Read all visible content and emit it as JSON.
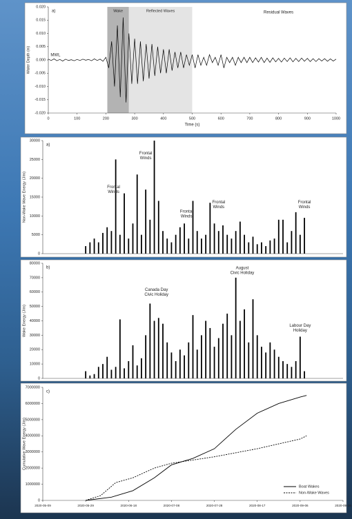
{
  "chart_data": [
    {
      "type": "line",
      "panel_label": "a)",
      "xlabel": "Time (s)",
      "ylabel": "Water Depth (m)",
      "xlim": [
        0,
        1000
      ],
      "xticks": [
        0,
        100,
        200,
        300,
        400,
        500,
        600,
        700,
        800,
        900,
        1000
      ],
      "ylim": [
        -0.02,
        0.02
      ],
      "yticks": [
        {
          "value": 0.02,
          "label": "0.020"
        },
        0.015,
        {
          "value": 0.01,
          "label": "0.010"
        },
        0.005,
        {
          "value": 0,
          "label": "0.000"
        },
        -0.005,
        {
          "value": -0.01,
          "label": "-0.010"
        },
        -0.015,
        {
          "value": -0.02,
          "label": "-0.020"
        }
      ],
      "regions": [
        {
          "label": "Wake",
          "start": 205,
          "end": 280,
          "color": "#b3b3b3"
        },
        {
          "label": "Reflected Waves",
          "start": 280,
          "end": 500,
          "color": "#e4e4e4"
        }
      ],
      "annotations": [
        {
          "lines": [
            "Residual Waves"
          ],
          "x": 800,
          "y": 0.018
        },
        {
          "lines": [
            "MWL"
          ],
          "x": 25,
          "y": 0.0018
        }
      ],
      "series": [
        {
          "color": "#000000",
          "line_style": "solid",
          "x": [
            0,
            10,
            20,
            30,
            40,
            50,
            60,
            70,
            80,
            90,
            100,
            110,
            120,
            130,
            140,
            150,
            160,
            170,
            180,
            190,
            200,
            210,
            220,
            230,
            240,
            250,
            260,
            270,
            280,
            290,
            300,
            310,
            320,
            330,
            340,
            350,
            360,
            370,
            380,
            390,
            400,
            410,
            420,
            430,
            440,
            450,
            460,
            470,
            480,
            490,
            500,
            510,
            520,
            530,
            540,
            550,
            560,
            570,
            580,
            590,
            600,
            610,
            620,
            630,
            640,
            650,
            660,
            670,
            680,
            690,
            700,
            710,
            720,
            730,
            740,
            750,
            760,
            770,
            780,
            790,
            800,
            810,
            820,
            830,
            840,
            850,
            860,
            870,
            880,
            890,
            900,
            910,
            920,
            930,
            940,
            950,
            960,
            970,
            980,
            990,
            1000
          ],
          "values": [
            0.0003,
            -0.0002,
            0.0004,
            -0.0003,
            0.0002,
            -0.0004,
            0.0003,
            -0.0002,
            0.0001,
            -0.0003,
            0.0002,
            -0.0002,
            0.0003,
            -0.0001,
            0.0002,
            -0.0003,
            0.0004,
            -0.0002,
            0.0003,
            -0.0005,
            0.001,
            -0.003,
            0.007,
            -0.01,
            0.013,
            -0.014,
            0.016,
            -0.016,
            0.01,
            -0.009,
            0.008,
            -0.009,
            0.007,
            -0.008,
            0.006,
            -0.007,
            0.006,
            -0.006,
            0.005,
            -0.005,
            0.004,
            -0.005,
            0.004,
            -0.004,
            0.003,
            -0.003,
            0.003,
            -0.003,
            0.002,
            -0.002,
            0.002,
            -0.003,
            0.002,
            -0.002,
            0.001,
            -0.002,
            0.002,
            -0.001,
            0.001,
            -0.002,
            0.002,
            -0.003,
            0.001,
            -0.001,
            0.001,
            -0.002,
            0.001,
            -0.001,
            0.001,
            -0.001,
            0.001,
            -0.001,
            0.0008,
            -0.0008,
            0.001,
            -0.001,
            0.0007,
            -0.0009,
            0.0008,
            -0.0007,
            0.0006,
            -0.0008,
            0.0007,
            -0.0006,
            0.0008,
            -0.0007,
            0.0006,
            -0.0006,
            0.0007,
            -0.0005,
            0.0006,
            -0.0006,
            0.0005,
            -0.0006,
            0.0005,
            -0.0004,
            0.0005,
            -0.0005,
            0.0004,
            -0.0004,
            0.0003
          ]
        }
      ]
    },
    {
      "type": "bar",
      "panel_label": "a)",
      "ylabel": "Non-Wake Wave Energy (J/m)",
      "color": "#000000",
      "xlim": [
        "2020-05-09",
        "2020-09-26"
      ],
      "ylim": [
        0,
        30000
      ],
      "yticks": [
        0,
        5000,
        10000,
        15000,
        20000,
        25000,
        30000
      ],
      "x": [
        "2020-05-29",
        "2020-05-31",
        "2020-06-02",
        "2020-06-04",
        "2020-06-06",
        "2020-06-08",
        "2020-06-10",
        "2020-06-12",
        "2020-06-14",
        "2020-06-16",
        "2020-06-18",
        "2020-06-20",
        "2020-06-22",
        "2020-06-24",
        "2020-06-26",
        "2020-06-28",
        "2020-06-30",
        "2020-07-02",
        "2020-07-04",
        "2020-07-06",
        "2020-07-08",
        "2020-07-10",
        "2020-07-12",
        "2020-07-14",
        "2020-07-16",
        "2020-07-18",
        "2020-07-20",
        "2020-07-22",
        "2020-07-24",
        "2020-07-26",
        "2020-07-28",
        "2020-07-30",
        "2020-08-01",
        "2020-08-03",
        "2020-08-05",
        "2020-08-07",
        "2020-08-09",
        "2020-08-11",
        "2020-08-13",
        "2020-08-15",
        "2020-08-17",
        "2020-08-19",
        "2020-08-21",
        "2020-08-23",
        "2020-08-25",
        "2020-08-27",
        "2020-08-29",
        "2020-08-31",
        "2020-09-02",
        "2020-09-04",
        "2020-09-06",
        "2020-09-08"
      ],
      "values": [
        2000,
        3000,
        4000,
        3000,
        5500,
        7000,
        6000,
        25000,
        5000,
        16000,
        4000,
        8000,
        21000,
        5000,
        17000,
        9000,
        30000,
        14000,
        6000,
        4000,
        3000,
        5000,
        7000,
        8000,
        4000,
        14000,
        6000,
        4000,
        5000,
        13500,
        8000,
        6000,
        7500,
        5000,
        4000,
        6000,
        8500,
        5000,
        3000,
        4500,
        2500,
        3000,
        2000,
        3500,
        4000,
        9000,
        9000,
        3000,
        6000,
        11000,
        5000,
        9500
      ],
      "annotations": [
        {
          "lines": [
            "Frontal",
            "Winds"
          ],
          "x": "2020-06-11",
          "y": 17000
        },
        {
          "lines": [
            "Frontal",
            "Winds"
          ],
          "x": "2020-06-26",
          "y": 26000
        },
        {
          "lines": [
            "Frontal",
            "Winds"
          ],
          "x": "2020-07-15",
          "y": 10500
        },
        {
          "lines": [
            "Frontal",
            "Winds"
          ],
          "x": "2020-07-30",
          "y": 13000
        },
        {
          "lines": [
            "Frontal",
            "Winds"
          ],
          "x": "2020-09-08",
          "y": 13000
        }
      ]
    },
    {
      "type": "bar",
      "panel_label": "b)",
      "ylabel": "Wake Energy (J/m)",
      "color": "#000000",
      "xlim": [
        "2020-05-09",
        "2020-09-26"
      ],
      "ylim": [
        0,
        80000
      ],
      "yticks": [
        0,
        10000,
        20000,
        30000,
        40000,
        50000,
        60000,
        70000,
        80000
      ],
      "x": [
        "2020-05-29",
        "2020-05-31",
        "2020-06-02",
        "2020-06-04",
        "2020-06-06",
        "2020-06-08",
        "2020-06-10",
        "2020-06-12",
        "2020-06-14",
        "2020-06-16",
        "2020-06-18",
        "2020-06-20",
        "2020-06-22",
        "2020-06-24",
        "2020-06-26",
        "2020-06-28",
        "2020-06-30",
        "2020-07-02",
        "2020-07-04",
        "2020-07-06",
        "2020-07-08",
        "2020-07-10",
        "2020-07-12",
        "2020-07-14",
        "2020-07-16",
        "2020-07-18",
        "2020-07-20",
        "2020-07-22",
        "2020-07-24",
        "2020-07-26",
        "2020-07-28",
        "2020-07-30",
        "2020-08-01",
        "2020-08-03",
        "2020-08-05",
        "2020-08-07",
        "2020-08-09",
        "2020-08-11",
        "2020-08-13",
        "2020-08-15",
        "2020-08-17",
        "2020-08-19",
        "2020-08-21",
        "2020-08-23",
        "2020-08-25",
        "2020-08-27",
        "2020-08-29",
        "2020-08-31",
        "2020-09-02",
        "2020-09-04",
        "2020-09-06",
        "2020-09-08"
      ],
      "values": [
        5000,
        2000,
        3000,
        8000,
        10000,
        15000,
        6000,
        8000,
        41000,
        7000,
        12000,
        23000,
        9000,
        14000,
        30000,
        52000,
        40000,
        42000,
        38000,
        25000,
        18000,
        12000,
        20000,
        16000,
        25000,
        44000,
        20000,
        30000,
        40000,
        35000,
        22000,
        28000,
        38000,
        45000,
        30000,
        70000,
        40000,
        48000,
        25000,
        55000,
        30000,
        22000,
        18000,
        25000,
        20000,
        15000,
        12000,
        10000,
        8000,
        12000,
        29000,
        5000
      ],
      "annotations": [
        {
          "lines": [
            "Canada Day",
            "Civic Holiday"
          ],
          "x": "2020-07-01",
          "y": 60000
        },
        {
          "lines": [
            "August",
            "Civic Holiday"
          ],
          "x": "2020-08-10",
          "y": 75000
        },
        {
          "lines": [
            "Labour Day",
            "Holiday"
          ],
          "x": "2020-09-06",
          "y": 35000
        }
      ]
    },
    {
      "type": "line",
      "panel_label": "c)",
      "ylabel": "Cumulative Wave Energy (J/m)",
      "legend": "lower right",
      "xlim": [
        "2020-05-09",
        "2020-09-26"
      ],
      "xticks": [
        "2020-05-09",
        "2020-05-29",
        "2020-06-18",
        "2020-07-08",
        "2020-07-28",
        "2020-08-17",
        "2020-09-06",
        "2020-09-26"
      ],
      "ylim": [
        0,
        7000000
      ],
      "yticks": [
        0,
        1000000,
        2000000,
        3000000,
        4000000,
        5000000,
        6000000,
        7000000
      ],
      "series": [
        {
          "name": "Boat Wakes",
          "color": "#000000",
          "line_style": "solid",
          "x": [
            "2020-05-29",
            "2020-06-10",
            "2020-06-20",
            "2020-06-30",
            "2020-07-08",
            "2020-07-18",
            "2020-07-28",
            "2020-08-07",
            "2020-08-17",
            "2020-08-27",
            "2020-09-06",
            "2020-09-09"
          ],
          "values": [
            0,
            200000,
            600000,
            1400000,
            2200000,
            2600000,
            3200000,
            4400000,
            5400000,
            6000000,
            6400000,
            6500000
          ]
        },
        {
          "name": "Non-Wake Waves",
          "color": "#000000",
          "line_style": "dashed",
          "x": [
            "2020-05-29",
            "2020-06-05",
            "2020-06-12",
            "2020-06-20",
            "2020-06-30",
            "2020-07-08",
            "2020-07-28",
            "2020-08-17",
            "2020-08-27",
            "2020-09-06",
            "2020-09-09"
          ],
          "values": [
            0,
            300000,
            1100000,
            1400000,
            2000000,
            2300000,
            2700000,
            3200000,
            3500000,
            3800000,
            4000000
          ]
        }
      ]
    }
  ]
}
